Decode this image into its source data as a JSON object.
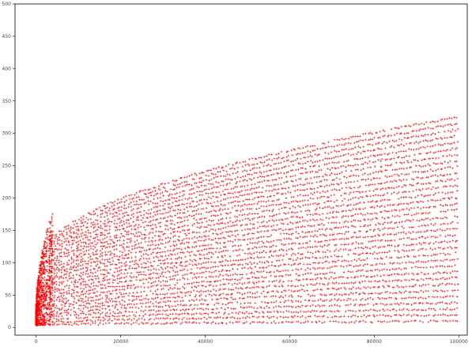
{
  "chart_data": {
    "type": "scatter",
    "title": "",
    "xlabel": "",
    "ylabel": "",
    "xlim": [
      -5000,
      102000
    ],
    "ylim": [
      -12,
      500
    ],
    "x_ticks": [
      0,
      20000,
      40000,
      60000,
      80000,
      100000
    ],
    "x_tick_labels": [
      "0",
      "20000",
      "40000",
      "60000",
      "80000",
      "100000"
    ],
    "y_ticks": [
      0,
      50,
      100,
      150,
      200,
      250,
      300,
      350,
      400,
      450,
      500
    ],
    "y_tick_labels": [
      "0",
      "50",
      "100",
      "150",
      "200",
      "250",
      "300",
      "350",
      "400",
      "450",
      "500"
    ],
    "grid": false,
    "legend": "none",
    "marker": "+",
    "series": [
      {
        "color": "#ff0000",
        "description_of_pattern": "",
        "x_range": [
          1,
          100000
        ],
        "y_range": [
          1,
          350
        ]
      }
    ]
  }
}
